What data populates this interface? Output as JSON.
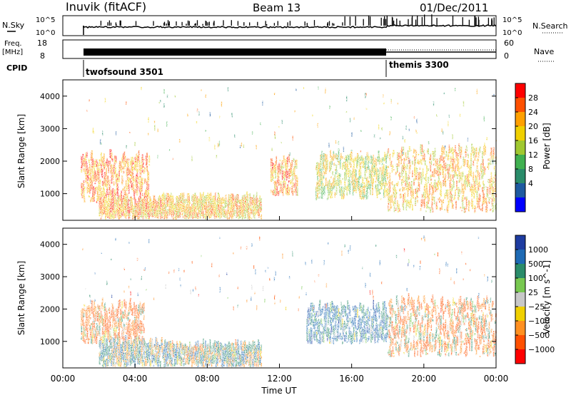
{
  "header": {
    "station": "Inuvik (fitACF)",
    "beam": "Beam 13",
    "date": "01/Dec/2011"
  },
  "status_panels": {
    "nsky_label": "N.Sky",
    "nsky_ticks": [
      "10^5",
      "10^0"
    ],
    "nsearch_ticks": [
      "10^5",
      "10^0"
    ],
    "nsearch_label": "N.Search",
    "freq_label": "Freq.",
    "freq_unit": "[MHz]",
    "freq_ticks": [
      "18",
      "8"
    ],
    "nave_ticks": [
      "60",
      "0"
    ],
    "nave_label": "Nave",
    "cpid_label": "CPID",
    "cpid_modes": [
      {
        "name": "twofsound 3501",
        "start_hour": 1.0
      },
      {
        "name": "themis 3300",
        "start_hour": 18.0
      }
    ]
  },
  "chart_data": [
    {
      "type": "heatmap",
      "title": "",
      "ylabel": "Slant Range [km]",
      "xlabel": "",
      "xlim": [
        0,
        24
      ],
      "ylim": [
        180,
        4500
      ],
      "yticks": [
        "1000",
        "2000",
        "3000",
        "4000"
      ],
      "colorbar": {
        "label": "Power [dB]",
        "ticks": [
          "28",
          "24",
          "20",
          "16",
          "12",
          "8",
          "4"
        ],
        "colors": [
          "#ff0000",
          "#ff5000",
          "#ffa000",
          "#f0d000",
          "#a0c830",
          "#40b050",
          "#2a8c6a",
          "#1e5aa0",
          "#0000ff"
        ]
      },
      "regions": [
        {
          "hour_start": 1.0,
          "hour_end": 4.8,
          "range_min": 700,
          "range_max": 2100,
          "level": 26
        },
        {
          "hour_start": 2.0,
          "hour_end": 5.5,
          "range_min": 200,
          "range_max": 700,
          "level": 24
        },
        {
          "hour_start": 5.5,
          "hour_end": 11.0,
          "range_min": 200,
          "range_max": 800,
          "level": 22
        },
        {
          "hour_start": 11.5,
          "hour_end": 13.0,
          "range_min": 900,
          "range_max": 2000,
          "level": 24
        },
        {
          "hour_start": 14.0,
          "hour_end": 18.0,
          "range_min": 800,
          "range_max": 2100,
          "level": 18
        },
        {
          "hour_start": 18.0,
          "hour_end": 24.0,
          "range_min": 400,
          "range_max": 2300,
          "level": 22
        }
      ]
    },
    {
      "type": "heatmap",
      "title": "",
      "ylabel": "Slant Range [km]",
      "xlabel": "Time UT",
      "xlim": [
        0,
        24
      ],
      "ylim": [
        180,
        4500
      ],
      "xticks": [
        "00:00",
        "04:00",
        "08:00",
        "12:00",
        "16:00",
        "20:00",
        "00:00"
      ],
      "yticks": [
        "1000",
        "2000",
        "3000",
        "4000"
      ],
      "colorbar": {
        "label": "Velocity [m s^-1]",
        "ticks": [
          "1000",
          "500",
          "100",
          "25",
          "−25",
          "−100",
          "−500",
          "−1000"
        ],
        "colors": [
          "#1e3ca0",
          "#1e6ab4",
          "#2a8c6a",
          "#78c850",
          "#c8c8c8",
          "#f0d000",
          "#ff9020",
          "#ff5000",
          "#ff0000"
        ]
      },
      "regions": [
        {
          "hour_start": 1.0,
          "hour_end": 4.5,
          "range_min": 900,
          "range_max": 2100,
          "level": -300
        },
        {
          "hour_start": 2.0,
          "hour_end": 6.0,
          "range_min": 200,
          "range_max": 900,
          "level": 150
        },
        {
          "hour_start": 6.0,
          "hour_end": 11.0,
          "range_min": 200,
          "range_max": 800,
          "level": 120
        },
        {
          "hour_start": 13.5,
          "hour_end": 18.0,
          "range_min": 900,
          "range_max": 2000,
          "level": 400
        },
        {
          "hour_start": 18.0,
          "hour_end": 24.0,
          "range_min": 500,
          "range_max": 2200,
          "level": -200
        }
      ]
    }
  ]
}
